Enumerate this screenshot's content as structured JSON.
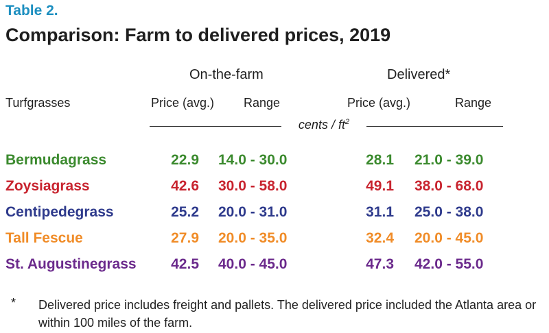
{
  "table_label": "Table 2.",
  "title": "Comparison: Farm to delivered prices, 2019",
  "groups": {
    "farm": "On-the-farm",
    "delivered": "Delivered*"
  },
  "columns": {
    "turfgrasses": "Turfgrasses",
    "farm_price": "Price (avg.)",
    "farm_range": "Range",
    "delivered_price": "Price (avg.)",
    "delivered_range": "Range"
  },
  "unit": {
    "text": "cents / ft",
    "superscript": "2"
  },
  "rows": [
    {
      "name": "Bermudagrass",
      "farm_price": "22.9",
      "farm_range": "14.0 - 30.0",
      "delivered_price": "28.1",
      "delivered_range": "21.0 - 39.0",
      "color": "#3b8a2e"
    },
    {
      "name": "Zoysiagrass",
      "farm_price": "42.6",
      "farm_range": "30.0 - 58.0",
      "delivered_price": "49.1",
      "delivered_range": "38.0 - 68.0",
      "color": "#c8242f"
    },
    {
      "name": "Centipedegrass",
      "farm_price": "25.2",
      "farm_range": "20.0 - 31.0",
      "delivered_price": "31.1",
      "delivered_range": "25.0 - 38.0",
      "color": "#2e3a8c"
    },
    {
      "name": "Tall Fescue",
      "farm_price": "27.9",
      "farm_range": "20.0 - 35.0",
      "delivered_price": "32.4",
      "delivered_range": "20.0 - 45.0",
      "color": "#f08c28"
    },
    {
      "name": "St. Augustinegrass",
      "farm_price": "42.5",
      "farm_range": "40.0 - 45.0",
      "delivered_price": "47.3",
      "delivered_range": "42.0 - 55.0",
      "color": "#6b2a8c"
    }
  ],
  "footnote": {
    "mark": "*",
    "text": "Delivered price includes freight and pallets. The delivered price included the Atlanta area or within 100 miles of the farm."
  }
}
